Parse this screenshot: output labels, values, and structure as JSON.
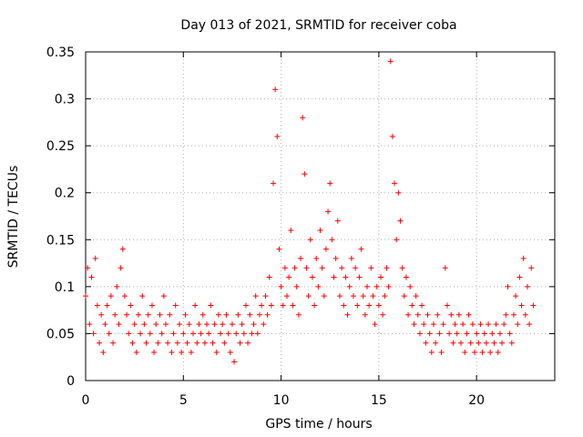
{
  "chart_data": {
    "type": "scatter",
    "title": "Day 013 of 2021, SRMTID for receiver coba",
    "xlabel": "GPS time / hours",
    "ylabel": "SRMTID / TECUs",
    "xlim": [
      0,
      24
    ],
    "ylim": [
      0,
      0.35
    ],
    "x_ticks": [
      0,
      5,
      10,
      15,
      20
    ],
    "x_tick_labels": [
      "0",
      "5",
      "10",
      "15",
      "20"
    ],
    "y_ticks": [
      0,
      0.05,
      0.1,
      0.15,
      0.2,
      0.25,
      0.3,
      0.35
    ],
    "y_tick_labels": [
      "0",
      "0.05",
      "0.1",
      "0.15",
      "0.2",
      "0.25",
      "0.3",
      "0.35"
    ],
    "grid": true,
    "marker": "+",
    "color": "#ff0000",
    "sampling_interval_hours": 0.1,
    "series": [
      {
        "name": "SRMTID",
        "points": [
          [
            0.0,
            0.09
          ],
          [
            0.1,
            0.12
          ],
          [
            0.2,
            0.06
          ],
          [
            0.3,
            0.11
          ],
          [
            0.4,
            0.05
          ],
          [
            0.5,
            0.13
          ],
          [
            0.6,
            0.08
          ],
          [
            0.7,
            0.04
          ],
          [
            0.8,
            0.07
          ],
          [
            0.9,
            0.03
          ],
          [
            1.0,
            0.06
          ],
          [
            1.1,
            0.08
          ],
          [
            1.2,
            0.05
          ],
          [
            1.3,
            0.09
          ],
          [
            1.4,
            0.04
          ],
          [
            1.5,
            0.07
          ],
          [
            1.6,
            0.1
          ],
          [
            1.7,
            0.06
          ],
          [
            1.8,
            0.12
          ],
          [
            1.9,
            0.14
          ],
          [
            2.0,
            0.09
          ],
          [
            2.1,
            0.07
          ],
          [
            2.2,
            0.05
          ],
          [
            2.3,
            0.08
          ],
          [
            2.4,
            0.04
          ],
          [
            2.5,
            0.06
          ],
          [
            2.6,
            0.03
          ],
          [
            2.7,
            0.07
          ],
          [
            2.8,
            0.05
          ],
          [
            2.9,
            0.09
          ],
          [
            3.0,
            0.06
          ],
          [
            3.1,
            0.04
          ],
          [
            3.2,
            0.07
          ],
          [
            3.3,
            0.05
          ],
          [
            3.4,
            0.08
          ],
          [
            3.5,
            0.03
          ],
          [
            3.6,
            0.06
          ],
          [
            3.7,
            0.04
          ],
          [
            3.8,
            0.07
          ],
          [
            3.9,
            0.05
          ],
          [
            4.0,
            0.09
          ],
          [
            4.1,
            0.06
          ],
          [
            4.2,
            0.04
          ],
          [
            4.3,
            0.07
          ],
          [
            4.4,
            0.03
          ],
          [
            4.5,
            0.05
          ],
          [
            4.6,
            0.08
          ],
          [
            4.7,
            0.04
          ],
          [
            4.8,
            0.06
          ],
          [
            4.9,
            0.03
          ],
          [
            5.0,
            0.05
          ],
          [
            5.1,
            0.07
          ],
          [
            5.2,
            0.04
          ],
          [
            5.3,
            0.06
          ],
          [
            5.4,
            0.03
          ],
          [
            5.5,
            0.05
          ],
          [
            5.6,
            0.08
          ],
          [
            5.7,
            0.04
          ],
          [
            5.8,
            0.06
          ],
          [
            5.9,
            0.05
          ],
          [
            6.0,
            0.07
          ],
          [
            6.1,
            0.04
          ],
          [
            6.2,
            0.06
          ],
          [
            6.3,
            0.05
          ],
          [
            6.4,
            0.08
          ],
          [
            6.5,
            0.04
          ],
          [
            6.6,
            0.06
          ],
          [
            6.7,
            0.03
          ],
          [
            6.8,
            0.07
          ],
          [
            6.9,
            0.05
          ],
          [
            7.0,
            0.06
          ],
          [
            7.1,
            0.04
          ],
          [
            7.2,
            0.07
          ],
          [
            7.3,
            0.05
          ],
          [
            7.4,
            0.03
          ],
          [
            7.5,
            0.06
          ],
          [
            7.6,
            0.02
          ],
          [
            7.7,
            0.05
          ],
          [
            7.8,
            0.07
          ],
          [
            7.9,
            0.04
          ],
          [
            8.0,
            0.06
          ],
          [
            8.1,
            0.05
          ],
          [
            8.2,
            0.08
          ],
          [
            8.3,
            0.04
          ],
          [
            8.4,
            0.07
          ],
          [
            8.5,
            0.05
          ],
          [
            8.6,
            0.06
          ],
          [
            8.7,
            0.09
          ],
          [
            8.8,
            0.05
          ],
          [
            8.9,
            0.07
          ],
          [
            9.0,
            0.08
          ],
          [
            9.1,
            0.06
          ],
          [
            9.2,
            0.09
          ],
          [
            9.3,
            0.07
          ],
          [
            9.4,
            0.11
          ],
          [
            9.5,
            0.08
          ],
          [
            9.6,
            0.21
          ],
          [
            9.7,
            0.31
          ],
          [
            9.8,
            0.26
          ],
          [
            9.9,
            0.14
          ],
          [
            10.0,
            0.1
          ],
          [
            10.1,
            0.08
          ],
          [
            10.2,
            0.12
          ],
          [
            10.3,
            0.09
          ],
          [
            10.4,
            0.11
          ],
          [
            10.5,
            0.16
          ],
          [
            10.6,
            0.08
          ],
          [
            10.7,
            0.12
          ],
          [
            10.8,
            0.1
          ],
          [
            10.9,
            0.07
          ],
          [
            11.0,
            0.13
          ],
          [
            11.1,
            0.28
          ],
          [
            11.2,
            0.22
          ],
          [
            11.3,
            0.12
          ],
          [
            11.4,
            0.09
          ],
          [
            11.5,
            0.15
          ],
          [
            11.6,
            0.11
          ],
          [
            11.7,
            0.08
          ],
          [
            11.8,
            0.13
          ],
          [
            11.9,
            0.1
          ],
          [
            12.0,
            0.16
          ],
          [
            12.1,
            0.12
          ],
          [
            12.2,
            0.09
          ],
          [
            12.3,
            0.14
          ],
          [
            12.4,
            0.18
          ],
          [
            12.5,
            0.21
          ],
          [
            12.6,
            0.15
          ],
          [
            12.7,
            0.11
          ],
          [
            12.8,
            0.13
          ],
          [
            12.9,
            0.17
          ],
          [
            13.0,
            0.09
          ],
          [
            13.1,
            0.12
          ],
          [
            13.2,
            0.08
          ],
          [
            13.3,
            0.11
          ],
          [
            13.4,
            0.07
          ],
          [
            13.5,
            0.1
          ],
          [
            13.6,
            0.13
          ],
          [
            13.7,
            0.09
          ],
          [
            13.8,
            0.12
          ],
          [
            13.9,
            0.08
          ],
          [
            14.0,
            0.11
          ],
          [
            14.1,
            0.14
          ],
          [
            14.2,
            0.09
          ],
          [
            14.3,
            0.07
          ],
          [
            14.4,
            0.1
          ],
          [
            14.5,
            0.08
          ],
          [
            14.6,
            0.12
          ],
          [
            14.7,
            0.09
          ],
          [
            14.8,
            0.06
          ],
          [
            14.9,
            0.1
          ],
          [
            15.0,
            0.08
          ],
          [
            15.1,
            0.11
          ],
          [
            15.2,
            0.07
          ],
          [
            15.3,
            0.09
          ],
          [
            15.4,
            0.12
          ],
          [
            15.5,
            0.1
          ],
          [
            15.6,
            0.34
          ],
          [
            15.7,
            0.26
          ],
          [
            15.8,
            0.21
          ],
          [
            15.9,
            0.15
          ],
          [
            16.0,
            0.2
          ],
          [
            16.1,
            0.17
          ],
          [
            16.2,
            0.12
          ],
          [
            16.3,
            0.09
          ],
          [
            16.4,
            0.11
          ],
          [
            16.5,
            0.07
          ],
          [
            16.6,
            0.1
          ],
          [
            16.7,
            0.08
          ],
          [
            16.8,
            0.06
          ],
          [
            16.9,
            0.09
          ],
          [
            17.0,
            0.07
          ],
          [
            17.1,
            0.05
          ],
          [
            17.2,
            0.08
          ],
          [
            17.3,
            0.06
          ],
          [
            17.4,
            0.04
          ],
          [
            17.5,
            0.07
          ],
          [
            17.6,
            0.05
          ],
          [
            17.7,
            0.03
          ],
          [
            17.8,
            0.06
          ],
          [
            17.9,
            0.04
          ],
          [
            18.0,
            0.07
          ],
          [
            18.1,
            0.05
          ],
          [
            18.2,
            0.03
          ],
          [
            18.3,
            0.06
          ],
          [
            18.4,
            0.12
          ],
          [
            18.5,
            0.08
          ],
          [
            18.6,
            0.05
          ],
          [
            18.7,
            0.07
          ],
          [
            18.8,
            0.04
          ],
          [
            18.9,
            0.06
          ],
          [
            19.0,
            0.05
          ],
          [
            19.1,
            0.07
          ],
          [
            19.2,
            0.04
          ],
          [
            19.3,
            0.06
          ],
          [
            19.4,
            0.03
          ],
          [
            19.5,
            0.05
          ],
          [
            19.6,
            0.07
          ],
          [
            19.7,
            0.04
          ],
          [
            19.8,
            0.06
          ],
          [
            19.9,
            0.03
          ],
          [
            20.0,
            0.05
          ],
          [
            20.1,
            0.04
          ],
          [
            20.2,
            0.06
          ],
          [
            20.3,
            0.03
          ],
          [
            20.4,
            0.05
          ],
          [
            20.5,
            0.04
          ],
          [
            20.6,
            0.06
          ],
          [
            20.7,
            0.03
          ],
          [
            20.8,
            0.05
          ],
          [
            20.9,
            0.04
          ],
          [
            21.0,
            0.06
          ],
          [
            21.1,
            0.03
          ],
          [
            21.2,
            0.05
          ],
          [
            21.3,
            0.04
          ],
          [
            21.4,
            0.06
          ],
          [
            21.5,
            0.07
          ],
          [
            21.6,
            0.1
          ],
          [
            21.7,
            0.05
          ],
          [
            21.8,
            0.04
          ],
          [
            21.9,
            0.07
          ],
          [
            22.0,
            0.09
          ],
          [
            22.1,
            0.06
          ],
          [
            22.2,
            0.11
          ],
          [
            22.3,
            0.08
          ],
          [
            22.4,
            0.13
          ],
          [
            22.5,
            0.07
          ],
          [
            22.6,
            0.1
          ],
          [
            22.7,
            0.06
          ],
          [
            22.8,
            0.12
          ],
          [
            22.9,
            0.08
          ]
        ]
      }
    ]
  }
}
